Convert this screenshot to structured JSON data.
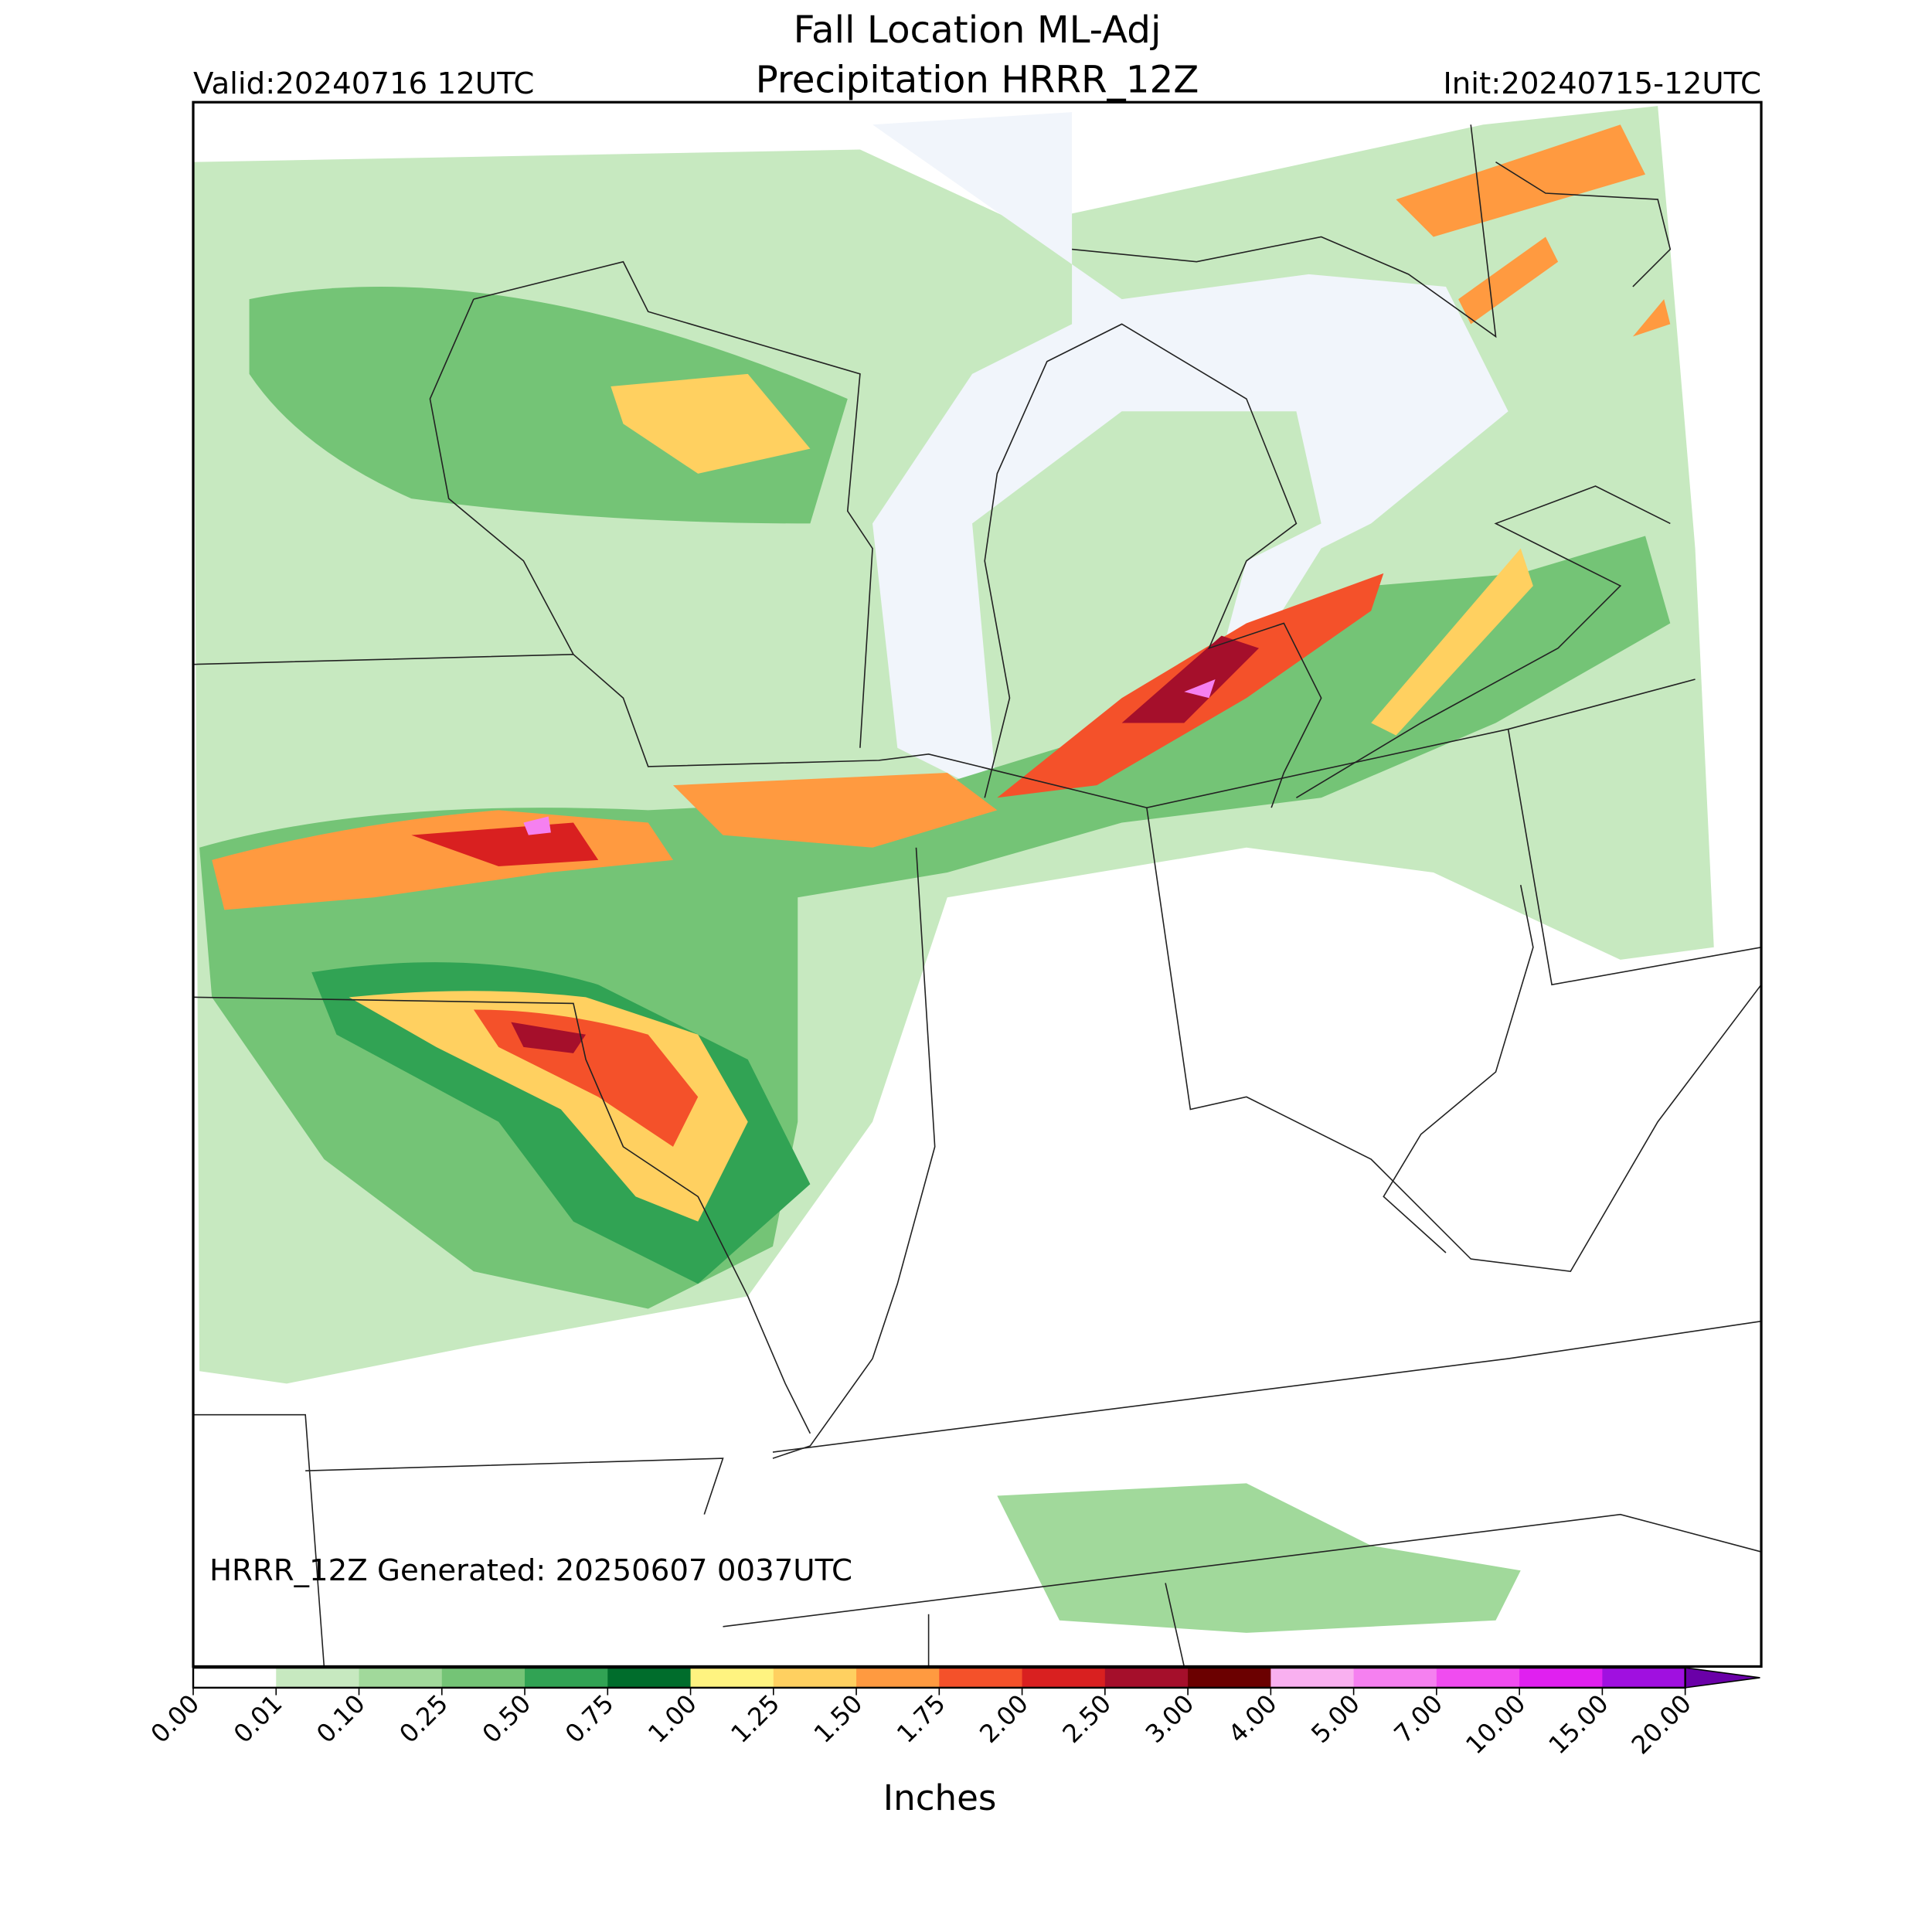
{
  "header": {
    "title_line1": "Fall Location ML-Adj",
    "title_line2": "Precipitation HRRR_12Z",
    "valid": "Valid:20240716 12UTC",
    "init": "Init:20240715-12UTC"
  },
  "map": {
    "generated": "HRRR_12Z Generated: 20250607 0037UTC"
  },
  "colorbar": {
    "label": "Inches",
    "ticks": [
      {
        "value": 0,
        "label": "0.00"
      },
      {
        "value": 0.01,
        "label": "0.01"
      },
      {
        "value": 0.1,
        "label": "0.10"
      },
      {
        "value": 0.25,
        "label": "0.25"
      },
      {
        "value": 0.5,
        "label": "0.50"
      },
      {
        "value": 0.75,
        "label": "0.75"
      },
      {
        "value": 1,
        "label": "1.00"
      },
      {
        "value": 1.25,
        "label": "1.25"
      },
      {
        "value": 1.5,
        "label": "1.50"
      },
      {
        "value": 1.75,
        "label": "1.75"
      },
      {
        "value": 2,
        "label": "2.00"
      },
      {
        "value": 2.5,
        "label": "2.50"
      },
      {
        "value": 3,
        "label": "3.00"
      },
      {
        "value": 4,
        "label": "4.00"
      },
      {
        "value": 5,
        "label": "5.00"
      },
      {
        "value": 7,
        "label": "7.00"
      },
      {
        "value": 10,
        "label": "10.00"
      },
      {
        "value": 15,
        "label": "15.00"
      },
      {
        "value": 20,
        "label": "20.00"
      }
    ],
    "colors": [
      "#ffffff",
      "#c7e9c0",
      "#a1d99b",
      "#74c476",
      "#31a354",
      "#006d2c",
      "#fff380",
      "#ffd060",
      "#ff9a40",
      "#f4512a",
      "#d92020",
      "#a50f2b",
      "#6b0000",
      "#f9b0f0",
      "#f580f0",
      "#f04cf0",
      "#e020f0",
      "#a010e0"
    ],
    "extend_color": "#6a00a8"
  }
}
